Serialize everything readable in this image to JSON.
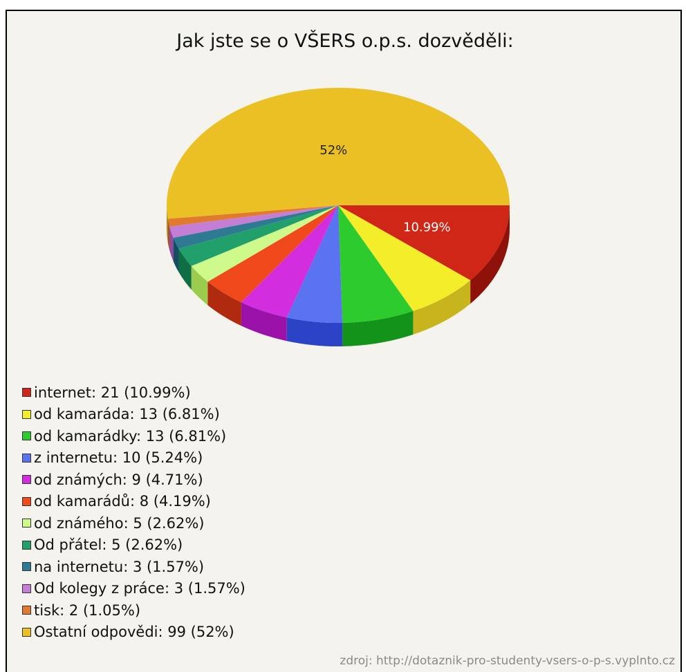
{
  "chart_data": {
    "type": "pie",
    "title": "Jak jste se o VŠERS o.p.s. dozvěděli:",
    "slices": [
      {
        "label": "internet",
        "value": 21,
        "percent": "10.99%",
        "color": "#d02618",
        "dark": "#8e1209"
      },
      {
        "label": "od kamaráda",
        "value": 13,
        "percent": "6.81%",
        "color": "#f4ee2a",
        "dark": "#c8b41c"
      },
      {
        "label": "od kamarádky",
        "value": 13,
        "percent": "6.81%",
        "color": "#2ecb2e",
        "dark": "#13931a"
      },
      {
        "label": "z internetu",
        "value": 10,
        "percent": "5.24%",
        "color": "#5a73f0",
        "dark": "#2c43c8"
      },
      {
        "label": "od známých",
        "value": 9,
        "percent": "4.71%",
        "color": "#d22ee0",
        "dark": "#9a12a8"
      },
      {
        "label": "od kamarádů",
        "value": 8,
        "percent": "4.19%",
        "color": "#f04a1c",
        "dark": "#b02a10"
      },
      {
        "label": "od známého",
        "value": 5,
        "percent": "2.62%",
        "color": "#cdfa8a",
        "dark": "#9ccc4e"
      },
      {
        "label": "Od přátel",
        "value": 5,
        "percent": "2.62%",
        "color": "#22a06c",
        "dark": "#0f6e44"
      },
      {
        "label": "na internetu",
        "value": 3,
        "percent": "1.57%",
        "color": "#2e7a92",
        "dark": "#154e62"
      },
      {
        "label": "Od kolegy z práce",
        "value": 3,
        "percent": "1.57%",
        "color": "#c57ed6",
        "dark": "#91489f"
      },
      {
        "label": "tisk",
        "value": 2,
        "percent": "1.05%",
        "color": "#e07a2e",
        "dark": "#a4521a"
      },
      {
        "label": "Ostatní odpovědi",
        "value": 99,
        "percent": "52%",
        "color": "#ebc024",
        "dark": "#b08c12"
      }
    ],
    "data_labels": [
      {
        "slice": 0,
        "text": "10.99%",
        "color": "#ffffff"
      },
      {
        "slice": 11,
        "text": "52%",
        "color": "#222222"
      }
    ],
    "legend": [
      "internet: 21 (10.99%)",
      "od kamaráda: 13 (6.81%)",
      "od kamarádky: 13 (6.81%)",
      "z internetu: 10 (5.24%)",
      "od známých: 9 (4.71%)",
      "od kamarádů: 8 (4.19%)",
      "od známého: 5 (2.62%)",
      "Od přátel: 5 (2.62%)",
      "na internetu: 3 (1.57%)",
      "Od kolegy z práce: 3 (1.57%)",
      "tisk: 2 (1.05%)",
      "Ostatní odpovědi: 99 (52%)"
    ],
    "legend_position": "bottom-left",
    "style": "3d-pie"
  },
  "source": "zdroj: http://dotaznik-pro-studenty-vsers-o-p-s.vyplnto.cz"
}
